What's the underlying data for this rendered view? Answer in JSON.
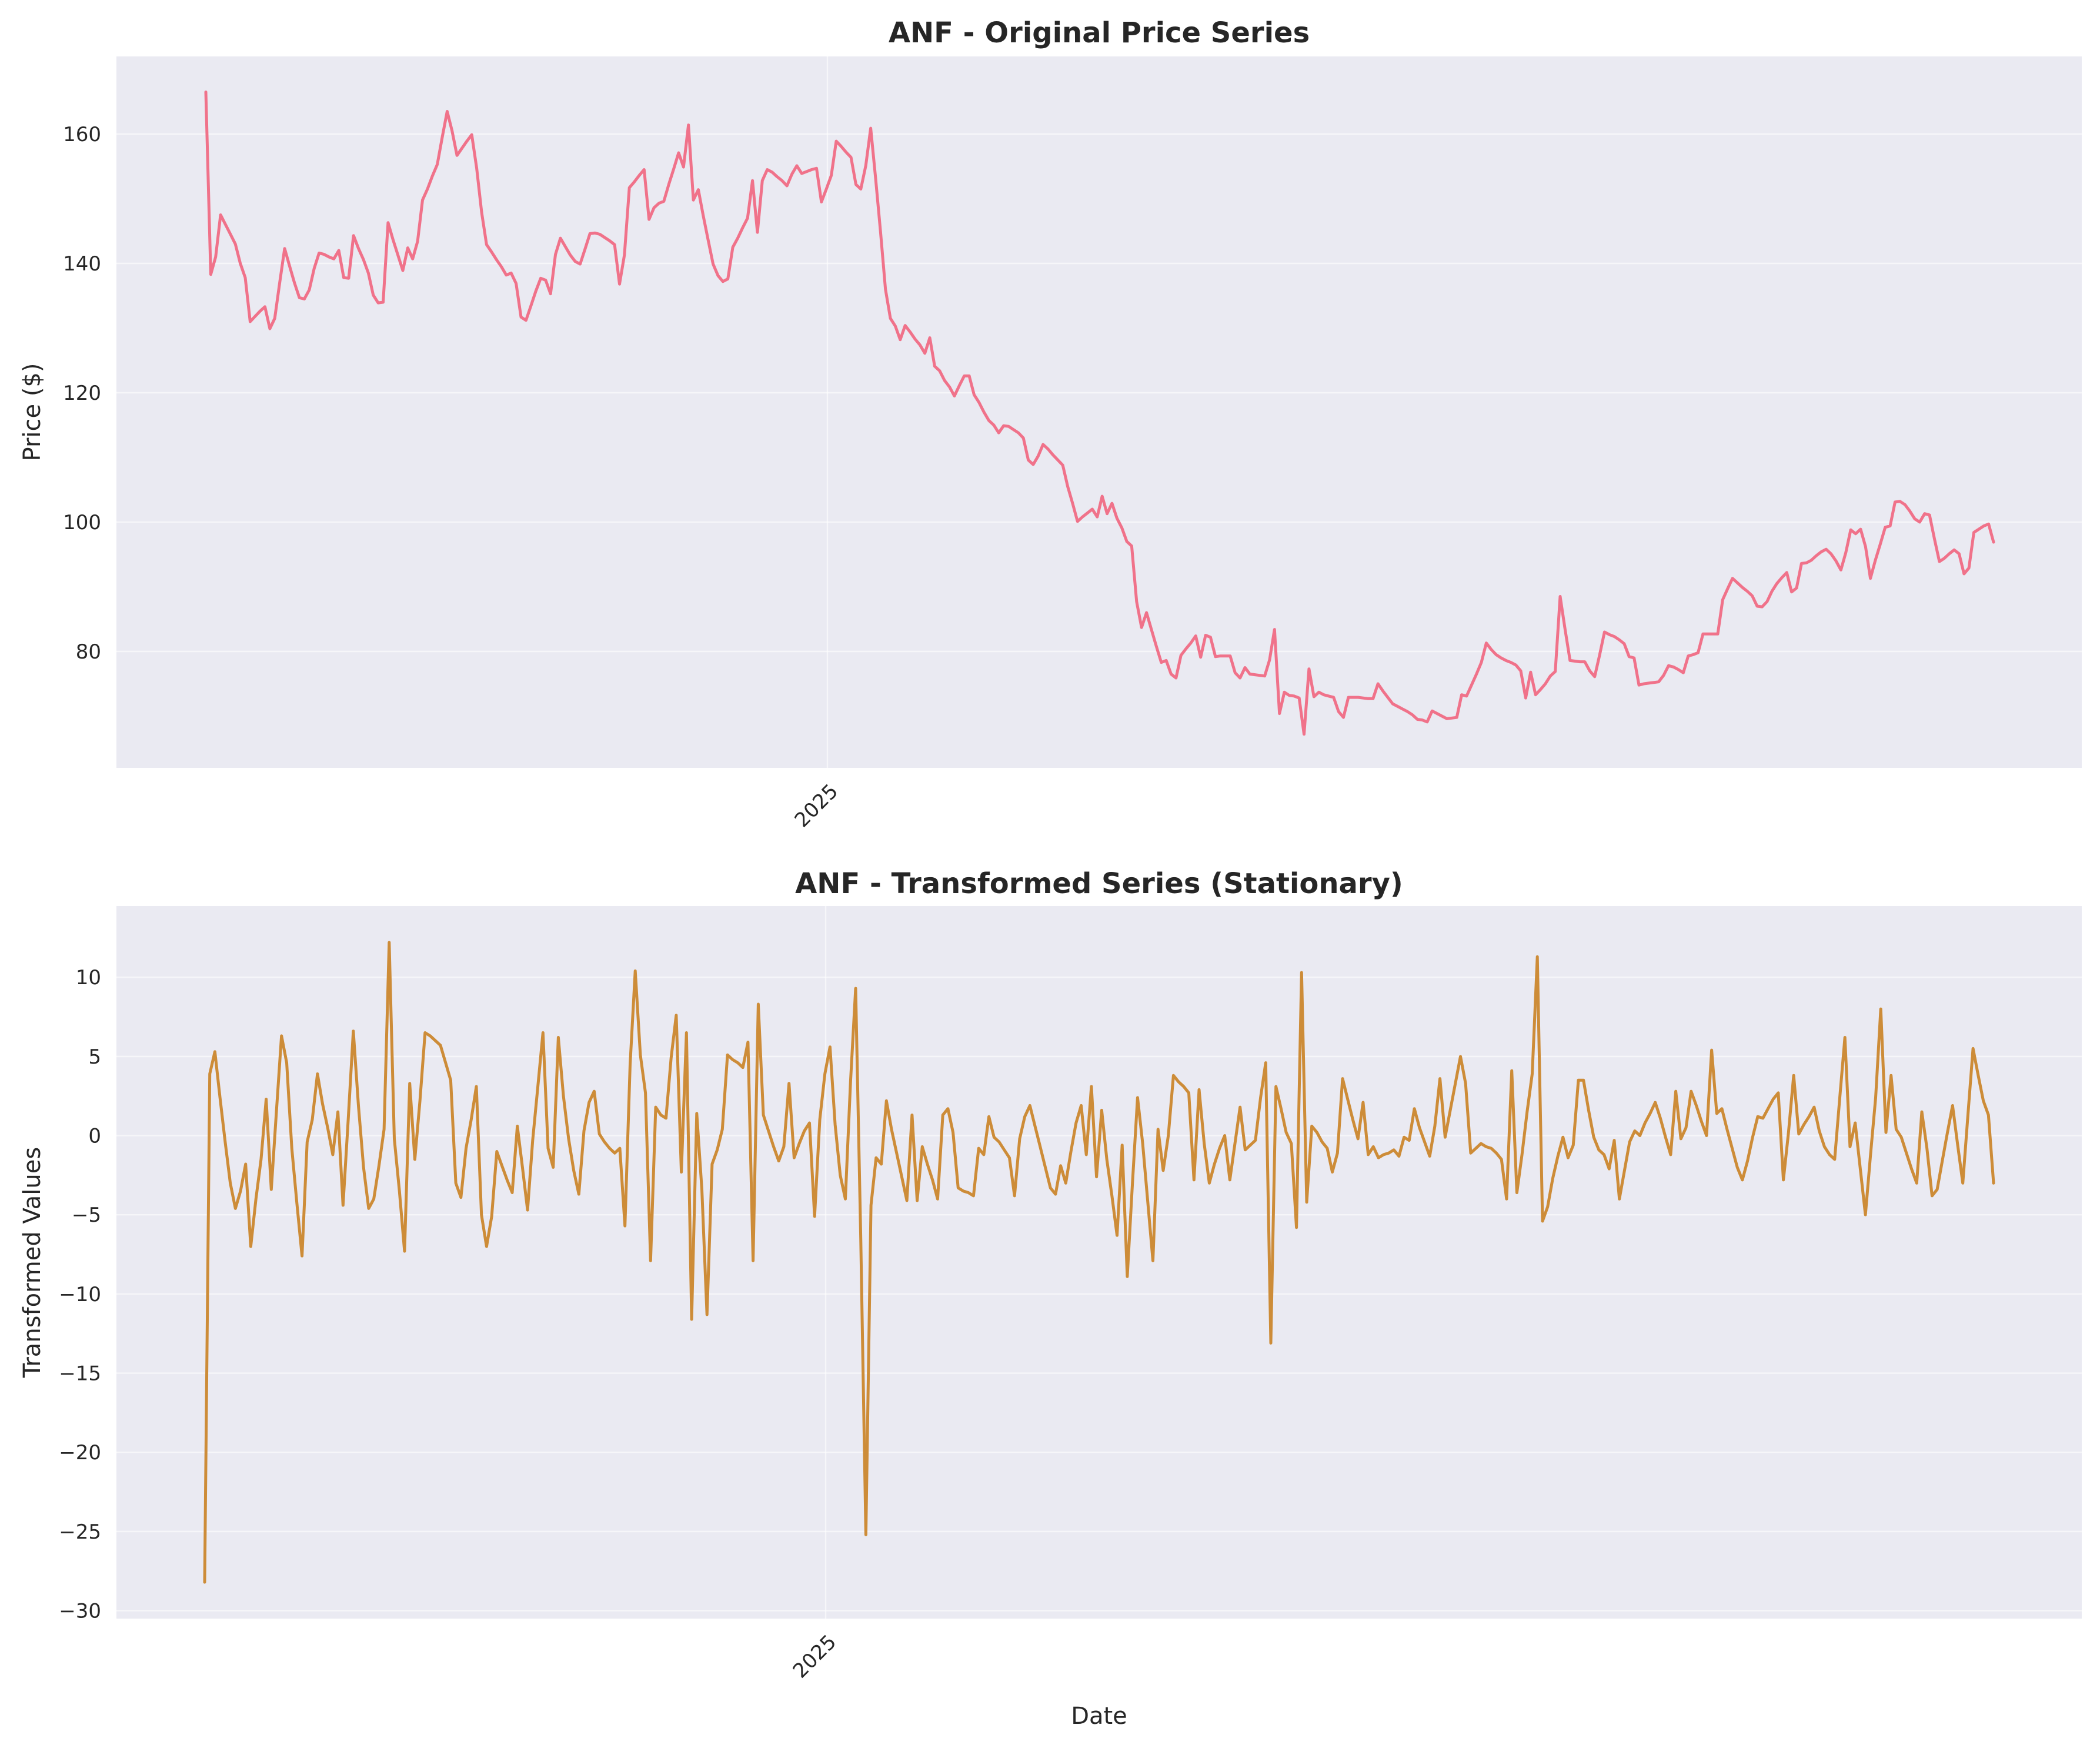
{
  "chart_data": [
    {
      "type": "line",
      "title": "ANF - Original Price Series",
      "ylabel": "Price ($)",
      "xlabel": "",
      "x_tick_labels": [
        "2025"
      ],
      "ylim": [
        62,
        172
      ],
      "y_ticks": [
        80,
        100,
        120,
        140,
        160
      ],
      "grid": true,
      "colors": {
        "line": "#f0728a",
        "background": "#eaeaf2"
      },
      "series": [
        {
          "values": [
            166.5,
            138.3,
            141,
            147.5,
            146,
            144.5,
            143,
            140,
            137.8,
            131,
            131.8,
            132.6,
            133.3,
            129.9,
            131.5,
            137,
            142.3,
            139.6,
            137,
            134.7,
            134.5,
            135.9,
            139.2,
            141.6,
            141.4,
            141,
            140.7,
            142,
            137.8,
            137.7,
            144.3,
            142.3,
            140.6,
            138.5,
            135.1,
            133.9,
            134,
            146.3,
            143.7,
            141.3,
            138.9,
            142.4,
            140.7,
            143.4,
            149.8,
            151.5,
            153.5,
            155.3,
            159.5,
            163.5,
            160.5,
            156.7,
            157.8,
            158.9,
            159.9,
            154.7,
            147.9,
            142.9,
            141.8,
            140.6,
            139.5,
            138.2,
            138.5,
            136.9,
            131.7,
            131.2,
            133.4,
            135.7,
            137.7,
            137.4,
            135.3,
            141.4,
            143.9,
            142.6,
            141.3,
            140.3,
            139.9,
            142.2,
            144.6,
            144.7,
            144.5,
            144,
            143.5,
            142.9,
            136.8,
            141.3,
            151.7,
            152.6,
            153.6,
            154.5,
            146.8,
            148.6,
            149.3,
            149.6,
            152.2,
            154.6,
            157.1,
            154.9,
            161.4,
            149.8,
            151.4,
            147.4,
            143.6,
            139.9,
            138.1,
            137.2,
            137.6,
            142.5,
            143.9,
            145.5,
            147,
            152.8,
            144.8,
            152.8,
            154.5,
            154.1,
            153.4,
            152.8,
            152,
            153.8,
            155.1,
            153.9,
            154.2,
            154.5,
            154.7,
            149.5,
            151.5,
            153.6,
            158.9,
            158.1,
            157.2,
            156.4,
            152.2,
            151.5,
            155.1,
            160.9,
            153.1,
            144.9,
            136,
            131.5,
            130.3,
            128.2,
            130.4,
            129.4,
            128.3,
            127.4,
            126.1,
            128.5,
            124.1,
            123.4,
            121.9,
            120.9,
            119.5,
            121.1,
            122.6,
            122.6,
            119.7,
            118.5,
            117,
            115.7,
            115,
            113.8,
            114.9,
            114.8,
            114.3,
            113.8,
            113,
            109.6,
            108.9,
            110.2,
            112,
            111.3,
            110.4,
            109.6,
            108.8,
            105.5,
            102.9,
            100.1,
            100.8,
            101.4,
            102,
            100.8,
            104,
            101.3,
            102.9,
            100.6,
            99.1,
            97,
            96.3,
            87.7,
            83.7,
            86,
            83.4,
            80.8,
            78.3,
            78.6,
            76.5,
            75.9,
            79.4,
            80.4,
            81.3,
            82.4,
            79.1,
            82.5,
            82.2,
            79.2,
            79.3,
            79.3,
            79.3,
            76.7,
            75.9,
            77.5,
            76.5,
            76.4,
            76.3,
            76.2,
            78.7,
            83.4,
            70.4,
            73.7,
            73.2,
            73.1,
            72.8,
            67.2,
            77.3,
            73,
            73.7,
            73.3,
            73.1,
            72.9,
            70.7,
            69.8,
            72.9,
            72.9,
            72.9,
            72.8,
            72.7,
            72.7,
            75,
            73.9,
            72.9,
            71.9,
            71.5,
            71.1,
            70.7,
            70.2,
            69.5,
            69.4,
            69.1,
            70.8,
            70.4,
            70,
            69.6,
            69.7,
            69.8,
            73.3,
            73.1,
            74.8,
            76.5,
            78.3,
            81.3,
            80.3,
            79.5,
            79,
            78.6,
            78.3,
            77.9,
            77,
            72.8,
            76.8,
            73.3,
            74.1,
            75,
            76.2,
            76.9,
            88.5,
            83.4,
            78.6,
            78.5,
            78.4,
            78.4,
            77,
            76.1,
            79.4,
            83,
            82.6,
            82.3,
            81.8,
            81.2,
            79.2,
            79,
            74.8,
            75,
            75.1,
            75.2,
            75.3,
            76.3,
            77.8,
            77.6,
            77.2,
            76.7,
            79.3,
            79.5,
            79.8,
            82.7,
            82.7,
            82.7,
            82.7,
            88,
            89.7,
            91.3,
            90.6,
            89.9,
            89.3,
            88.6,
            87,
            86.9,
            87.7,
            89.3,
            90.5,
            91.4,
            92.2,
            89.2,
            89.8,
            93.6,
            93.7,
            94.1,
            94.8,
            95.4,
            95.8,
            95.1,
            94,
            92.6,
            95.3,
            98.8,
            98.2,
            98.9,
            96.2,
            91.3,
            94.1,
            96.6,
            99.2,
            99.4,
            103.1,
            103.2,
            102.7,
            101.7,
            100.5,
            100,
            101.3,
            101.1,
            97.4,
            93.9,
            94.4,
            95.1,
            95.7,
            95.1,
            92,
            92.9,
            98.4,
            98.9,
            99.4,
            99.7,
            96.9
          ]
        }
      ]
    },
    {
      "type": "line",
      "title": "ANF - Transformed Series (Stationary)",
      "ylabel": "Transformed Values",
      "xlabel": "Date",
      "x_tick_labels": [
        "2025"
      ],
      "ylim": [
        -30.5,
        14.5
      ],
      "y_ticks": [
        -30,
        -25,
        -20,
        -15,
        -10,
        -5,
        0,
        5,
        10
      ],
      "grid": true,
      "colors": {
        "line": "#cd8c38",
        "background": "#eaeaf2"
      },
      "series": [
        {
          "values": [
            -28.2,
            3.9,
            5.3,
            2.4,
            -0.4,
            -3.0,
            -4.6,
            -3.5,
            -1.8,
            -7.0,
            -4.0,
            -1.5,
            2.3,
            -3.4,
            1.5,
            6.3,
            4.6,
            -0.8,
            -4.3,
            -7.6,
            -0.4,
            1.0,
            3.9,
            2.0,
            0.5,
            -1.2,
            1.5,
            -4.4,
            1.0,
            6.6,
            1.9,
            -2.0,
            -4.6,
            -4.0,
            -1.9,
            0.4,
            12.2,
            -0.2,
            -3.5,
            -7.3,
            3.3,
            -1.5,
            2.2,
            6.5,
            6.3,
            6.0,
            5.7,
            4.6,
            3.5,
            -3.0,
            -3.9,
            -0.8,
            1.0,
            3.1,
            -5.0,
            -7.0,
            -5.1,
            -1.0,
            -1.9,
            -2.8,
            -3.6,
            0.6,
            -2.0,
            -4.7,
            -0.3,
            3.1,
            6.5,
            -0.8,
            -2.0,
            6.2,
            2.5,
            -0.2,
            -2.2,
            -3.7,
            0.3,
            2.1,
            2.8,
            0.1,
            -0.4,
            -0.8,
            -1.1,
            -0.8,
            -5.7,
            4.5,
            10.4,
            5.1,
            2.7,
            -7.9,
            1.8,
            1.3,
            1.1,
            4.9,
            7.6,
            -2.3,
            6.5,
            -11.6,
            1.4,
            -3.4,
            -11.3,
            -1.8,
            -0.9,
            0.4,
            5.1,
            4.8,
            4.6,
            4.3,
            5.9,
            -7.9,
            8.3,
            1.3,
            0.3,
            -0.7,
            -1.6,
            -0.7,
            3.3,
            -1.4,
            -0.5,
            0.3,
            0.8,
            -5.1,
            1.0,
            3.9,
            5.6,
            0.7,
            -2.5,
            -4.0,
            3.4,
            9.3,
            -6.5,
            -25.2,
            -4.4,
            -1.4,
            -1.8,
            2.2,
            0.4,
            -1.1,
            -2.6,
            -4.1,
            1.3,
            -4.1,
            -0.7,
            -1.8,
            -2.8,
            -4.0,
            1.3,
            1.7,
            0.2,
            -3.3,
            -3.5,
            -3.6,
            -3.8,
            -0.8,
            -1.2,
            1.2,
            -0.1,
            -0.4,
            -0.9,
            -1.4,
            -3.8,
            -0.2,
            1.2,
            1.9,
            0.6,
            -0.7,
            -2.0,
            -3.3,
            -3.7,
            -1.9,
            -3.0,
            -1.0,
            0.8,
            1.9,
            -1.2,
            3.1,
            -2.6,
            1.6,
            -1.5,
            -3.8,
            -6.3,
            -0.6,
            -8.9,
            -3.0,
            2.4,
            -0.5,
            -4.2,
            -7.9,
            0.4,
            -2.2,
            0.0,
            3.8,
            3.4,
            3.1,
            2.7,
            -2.8,
            2.9,
            -0.5,
            -3.0,
            -1.8,
            -0.8,
            0.0,
            -2.8,
            -0.5,
            1.8,
            -0.9,
            -0.6,
            -0.3,
            2.4,
            4.6,
            -13.1,
            3.1,
            1.7,
            0.2,
            -0.5,
            -5.8,
            10.3,
            -4.2,
            0.6,
            0.2,
            -0.4,
            -0.8,
            -2.3,
            -1.1,
            3.6,
            2.3,
            1.0,
            -0.2,
            2.1,
            -1.2,
            -0.7,
            -1.4,
            -1.2,
            -1.1,
            -0.9,
            -1.3,
            -0.1,
            -0.3,
            1.7,
            0.5,
            -0.4,
            -1.3,
            0.6,
            3.6,
            -0.1,
            1.6,
            3.3,
            5.0,
            3.3,
            -1.1,
            -0.8,
            -0.5,
            -0.7,
            -0.8,
            -1.1,
            -1.5,
            -4.0,
            4.1,
            -3.6,
            -1.2,
            1.5,
            3.9,
            11.3,
            -5.4,
            -4.5,
            -2.7,
            -1.3,
            -0.1,
            -1.4,
            -0.6,
            3.5,
            3.5,
            1.6,
            -0.1,
            -0.9,
            -1.2,
            -2.1,
            -0.3,
            -4.0,
            -2.2,
            -0.4,
            0.3,
            0.0,
            0.8,
            1.4,
            2.1,
            1.1,
            -0.1,
            -1.2,
            2.8,
            -0.2,
            0.5,
            2.8,
            1.9,
            0.9,
            0.0,
            5.4,
            1.4,
            1.7,
            0.4,
            -0.8,
            -2.0,
            -2.8,
            -1.6,
            -0.1,
            1.2,
            1.1,
            1.7,
            2.3,
            2.7,
            -2.8,
            0.2,
            3.8,
            0.1,
            0.7,
            1.2,
            1.8,
            0.3,
            -0.7,
            -1.2,
            -1.5,
            2.4,
            6.2,
            -0.7,
            0.8,
            -2.1,
            -5.0,
            -1.2,
            2.4,
            8.0,
            0.2,
            3.8,
            0.4,
            -0.1,
            -1.1,
            -2.1,
            -3.0,
            1.5,
            -0.8,
            -3.8,
            -3.4,
            -1.6,
            0.2,
            1.9,
            -0.6,
            -3.0,
            1.3,
            5.5,
            3.8,
            2.2,
            1.3,
            -3.0
          ]
        }
      ]
    }
  ]
}
